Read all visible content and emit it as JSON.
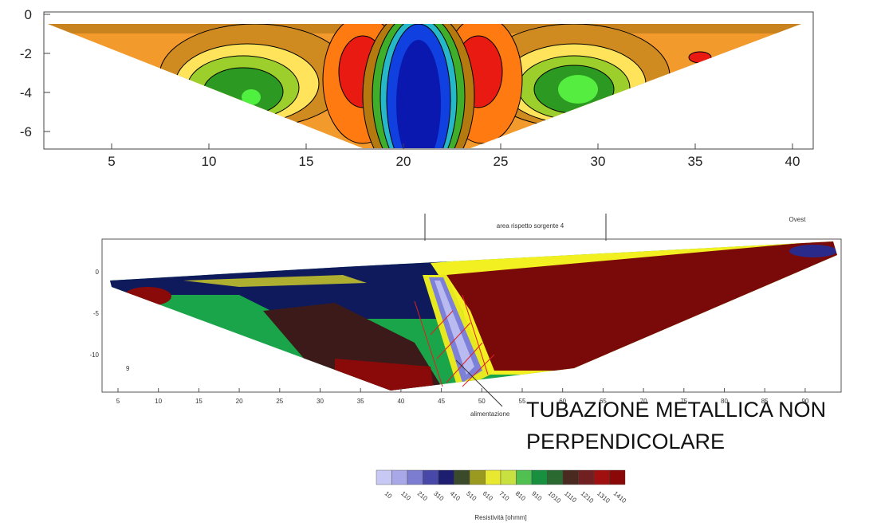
{
  "top_section": {
    "y_labels": [
      "0",
      "-2",
      "-4",
      "-6"
    ],
    "x_labels": [
      "5",
      "10",
      "15",
      "20",
      "25",
      "30",
      "35",
      "40"
    ]
  },
  "bottom_section": {
    "header": "area rispetto sorgente 4",
    "side": "Ovest",
    "marker": "9",
    "pointer": "alimentazione",
    "y_labels": [
      "0",
      "-5",
      "-10"
    ],
    "x_labels": [
      "5",
      "10",
      "15",
      "20",
      "25",
      "30",
      "35",
      "40",
      "45",
      "50",
      "55",
      "60",
      "65",
      "70",
      "75",
      "80",
      "85",
      "90"
    ]
  },
  "annotation": [
    "TUBAZIONE METALLICA NON",
    "PERPENDICOLARE"
  ],
  "legend": {
    "labels": [
      "10",
      "110",
      "210",
      "310",
      "410",
      "510",
      "610",
      "710",
      "810",
      "910",
      "1010",
      "1110",
      "1210",
      "1310",
      "1410"
    ],
    "title": "Resistività [ohmm]"
  }
}
